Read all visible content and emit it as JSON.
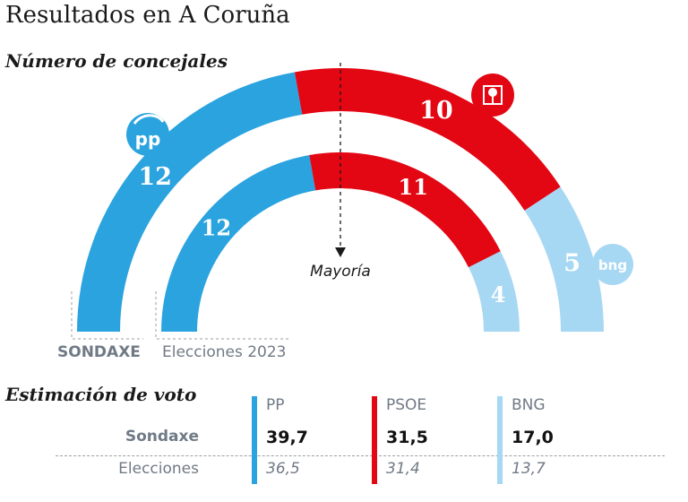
{
  "title": "Resultados en A Coruña",
  "subtitle": "Número de concejales",
  "chart_data": {
    "type": "semicircle-parliament",
    "series": [
      {
        "name": "SONDAXE",
        "seats": [
          {
            "party": "PP",
            "value": 12,
            "color": "#2aa3df"
          },
          {
            "party": "PSOE",
            "value": 10,
            "color": "#e30613"
          },
          {
            "party": "BNG",
            "value": 5,
            "color": "#a7d8f3"
          }
        ]
      },
      {
        "name": "Elecciones 2023",
        "seats": [
          {
            "party": "PP",
            "value": 12,
            "color": "#2aa3df"
          },
          {
            "party": "PSOE",
            "value": 11,
            "color": "#e30613"
          },
          {
            "party": "BNG",
            "value": 4,
            "color": "#a7d8f3"
          }
        ]
      }
    ],
    "total_seats": 27,
    "majority_label": "Mayoría"
  },
  "logos": {
    "pp": "pp",
    "bng": "bng"
  },
  "vote_estimate": {
    "title": "Estimación de voto",
    "columns": [
      {
        "party": "PP",
        "color": "#2aa3df",
        "sondaxe": "39,7",
        "elecciones": "36,5"
      },
      {
        "party": "PSOE",
        "color": "#e30613",
        "sondaxe": "31,5",
        "elecciones": "31,4"
      },
      {
        "party": "BNG",
        "color": "#a7d8f3",
        "sondaxe": "17,0",
        "elecciones": "13,7"
      }
    ],
    "rows": [
      "Sondaxe",
      "Elecciones"
    ]
  }
}
